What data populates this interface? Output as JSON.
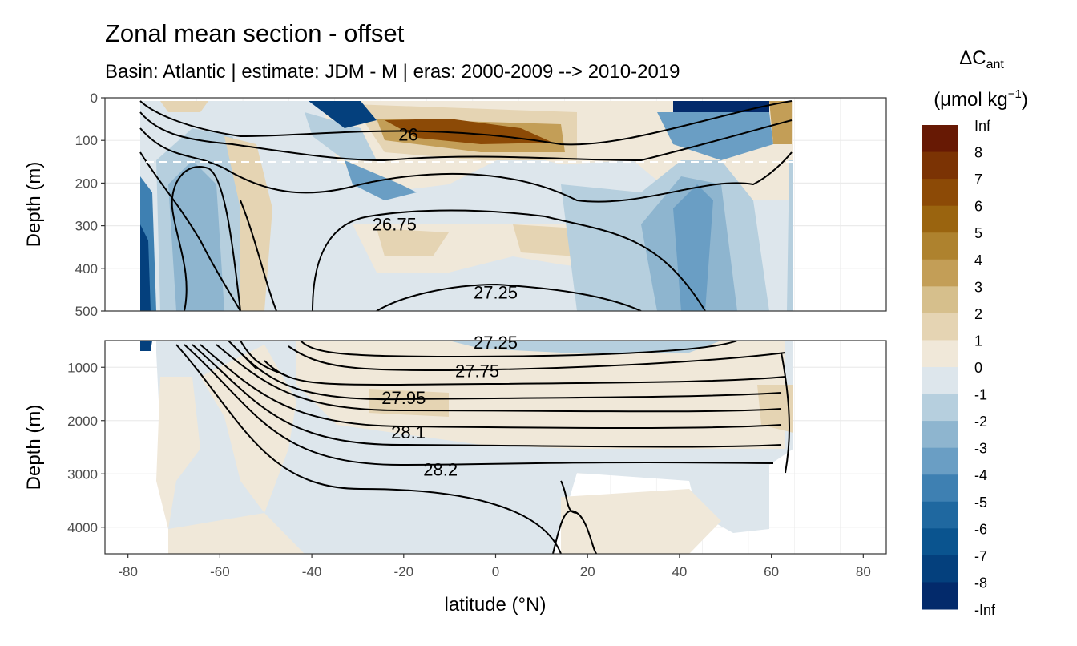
{
  "title": "Zonal mean section - offset",
  "subtitle": "Basin: Atlantic | estimate: JDM - M | eras: 2000-2009 --> 2010-2019",
  "chart_data": {
    "type": "heatmap",
    "xlabel": "latitude (°N)",
    "ylabel": "Depth (m)",
    "x_ticks": [
      "-80",
      "-60",
      "-40",
      "-20",
      "0",
      "20",
      "40",
      "60",
      "80"
    ],
    "xlim": [
      -85,
      85
    ],
    "panels": [
      {
        "name": "upper",
        "ylim": [
          500,
          0
        ],
        "y_ticks": [
          "0",
          "100",
          "200",
          "300",
          "400",
          "500"
        ],
        "reference_line_depth": 150
      },
      {
        "name": "lower",
        "ylim": [
          4500,
          500
        ],
        "y_ticks": [
          "1000",
          "2000",
          "3000",
          "4000"
        ]
      }
    ],
    "legend": {
      "title_main": "ΔC",
      "title_sub": "ant",
      "units_prefix": "(μmol kg",
      "units_sup": "−1",
      "units_suffix": ")",
      "placement": "right",
      "labels": [
        "Inf",
        "8",
        "7",
        "6",
        "5",
        "4",
        "3",
        "2",
        "1",
        "0",
        "-1",
        "-2",
        "-3",
        "-4",
        "-5",
        "-6",
        "-7",
        "-8",
        "-Inf"
      ],
      "colors": [
        "#671904",
        "#7b3304",
        "#8c4a06",
        "#9a640f",
        "#ae822e",
        "#c39e57",
        "#d6bf8c",
        "#e5d4b3",
        "#f0e8d9",
        "#dde6ec",
        "#b6cfde",
        "#8eb5cf",
        "#6a9ec4",
        "#3e80b2",
        "#1f68a0",
        "#0a548f",
        "#04407d",
        "#032a6b",
        "#00195a"
      ]
    },
    "isopycnal_labels": [
      {
        "text": "26",
        "lat": -19,
        "depth": 90,
        "panel": "upper"
      },
      {
        "text": "26.75",
        "lat": -22,
        "depth": 300,
        "panel": "upper"
      },
      {
        "text": "27.25",
        "lat": 0,
        "depth": 460,
        "panel": "upper"
      },
      {
        "text": "27.25",
        "lat": 0,
        "depth": 560,
        "panel": "lower"
      },
      {
        "text": "27.75",
        "lat": -4,
        "depth": 1100,
        "panel": "lower"
      },
      {
        "text": "27.95",
        "lat": -20,
        "depth": 1600,
        "panel": "lower"
      },
      {
        "text": "28.1",
        "lat": -19,
        "depth": 2250,
        "panel": "lower"
      },
      {
        "text": "28.2",
        "lat": -12,
        "depth": 2950,
        "panel": "lower"
      }
    ]
  }
}
